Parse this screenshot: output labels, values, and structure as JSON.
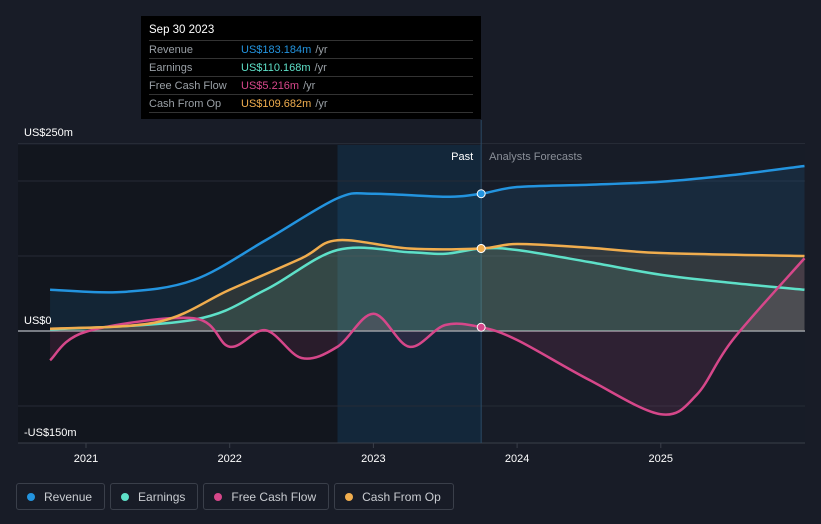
{
  "tooltip": {
    "date": "Sep 30 2023",
    "rows": [
      {
        "label": "Revenue",
        "value": "US$183.184m",
        "unit": "/yr",
        "color": "#2394df"
      },
      {
        "label": "Earnings",
        "value": "US$110.168m",
        "unit": "/yr",
        "color": "#5ee0c8"
      },
      {
        "label": "Free Cash Flow",
        "value": "US$5.216m",
        "unit": "/yr",
        "color": "#d6478a"
      },
      {
        "label": "Cash From Op",
        "value": "US$109.682m",
        "unit": "/yr",
        "color": "#f0ad4e"
      }
    ]
  },
  "chart_data": {
    "type": "line",
    "ylim": [
      -150,
      250
    ],
    "y_tick_labels": [
      "US$250m",
      "US$0",
      "-US$150m"
    ],
    "x_tick_labels": [
      "2021",
      "2022",
      "2023",
      "2024",
      "2025"
    ],
    "x_ticks": [
      2021,
      2022,
      2023,
      2024,
      2025
    ],
    "past_label": "Past",
    "forecast_label": "Analysts Forecasts",
    "divider_x": 2023.75,
    "highlight_start": 2022.75,
    "series": [
      {
        "name": "Revenue",
        "color": "#2394df",
        "points": [
          [
            2020.75,
            55
          ],
          [
            2021.25,
            52
          ],
          [
            2021.75,
            68
          ],
          [
            2022.25,
            121
          ],
          [
            2022.75,
            177
          ],
          [
            2023,
            183
          ],
          [
            2023.5,
            179
          ],
          [
            2023.75,
            183
          ],
          [
            2024,
            192
          ],
          [
            2024.5,
            195
          ],
          [
            2025,
            199
          ],
          [
            2025.5,
            208
          ],
          [
            2026,
            220
          ]
        ]
      },
      {
        "name": "Earnings",
        "color": "#5ee0c8",
        "points": [
          [
            2020.75,
            2
          ],
          [
            2021.75,
            15
          ],
          [
            2022.25,
            55
          ],
          [
            2022.75,
            108
          ],
          [
            2023.25,
            105
          ],
          [
            2023.5,
            103
          ],
          [
            2023.75,
            110
          ],
          [
            2024,
            108
          ],
          [
            2024.5,
            92
          ],
          [
            2025,
            75
          ],
          [
            2025.5,
            64
          ],
          [
            2026,
            55
          ]
        ]
      },
      {
        "name": "Free Cash Flow",
        "color": "#d6478a",
        "points": [
          [
            2020.75,
            -39
          ],
          [
            2021,
            -1
          ],
          [
            2021.75,
            17
          ],
          [
            2022,
            -21
          ],
          [
            2022.25,
            1
          ],
          [
            2022.5,
            -36
          ],
          [
            2022.75,
            -21
          ],
          [
            2023,
            23
          ],
          [
            2023.25,
            -21
          ],
          [
            2023.5,
            8
          ],
          [
            2023.75,
            5
          ],
          [
            2024,
            -12
          ],
          [
            2024.5,
            -65
          ],
          [
            2025,
            -111
          ],
          [
            2025.25,
            -85
          ],
          [
            2025.5,
            -12
          ],
          [
            2026,
            97
          ]
        ]
      },
      {
        "name": "Cash From Op",
        "color": "#f0ad4e",
        "points": [
          [
            2020.75,
            3
          ],
          [
            2021.5,
            12
          ],
          [
            2022,
            55
          ],
          [
            2022.5,
            97
          ],
          [
            2022.75,
            121
          ],
          [
            2023.25,
            110
          ],
          [
            2023.75,
            110
          ],
          [
            2024,
            116
          ],
          [
            2024.5,
            111
          ],
          [
            2025,
            104
          ],
          [
            2026,
            100
          ]
        ]
      }
    ]
  }
}
